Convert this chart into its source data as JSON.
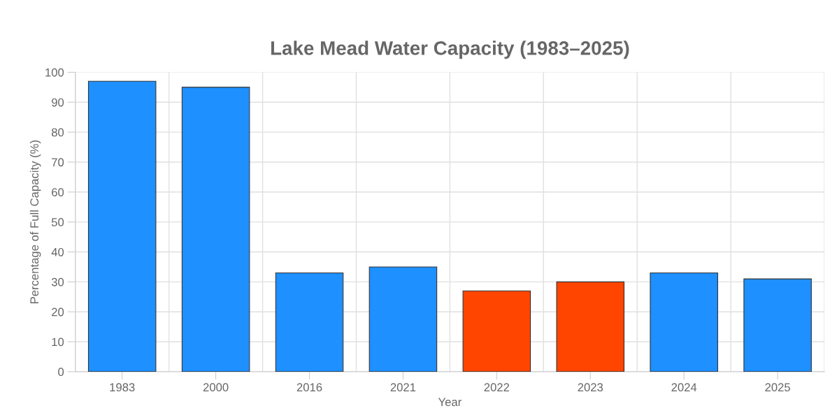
{
  "chart_data": {
    "type": "bar",
    "title": "Lake Mead Water Capacity (1983–2025)",
    "xlabel": "Year",
    "ylabel": "Percentage of Full Capacity (%)",
    "categories": [
      "1983",
      "2000",
      "2016",
      "2021",
      "2022",
      "2023",
      "2024",
      "2025"
    ],
    "values": [
      97,
      95,
      33,
      35,
      27,
      30,
      33,
      31
    ],
    "colors": [
      "#1e90ff",
      "#1e90ff",
      "#1e90ff",
      "#1e90ff",
      "#ff4500",
      "#ff4500",
      "#1e90ff",
      "#1e90ff"
    ],
    "ylim": [
      0,
      100
    ],
    "yticks": [
      0,
      10,
      20,
      30,
      40,
      50,
      60,
      70,
      80,
      90,
      100
    ],
    "grid": true
  }
}
